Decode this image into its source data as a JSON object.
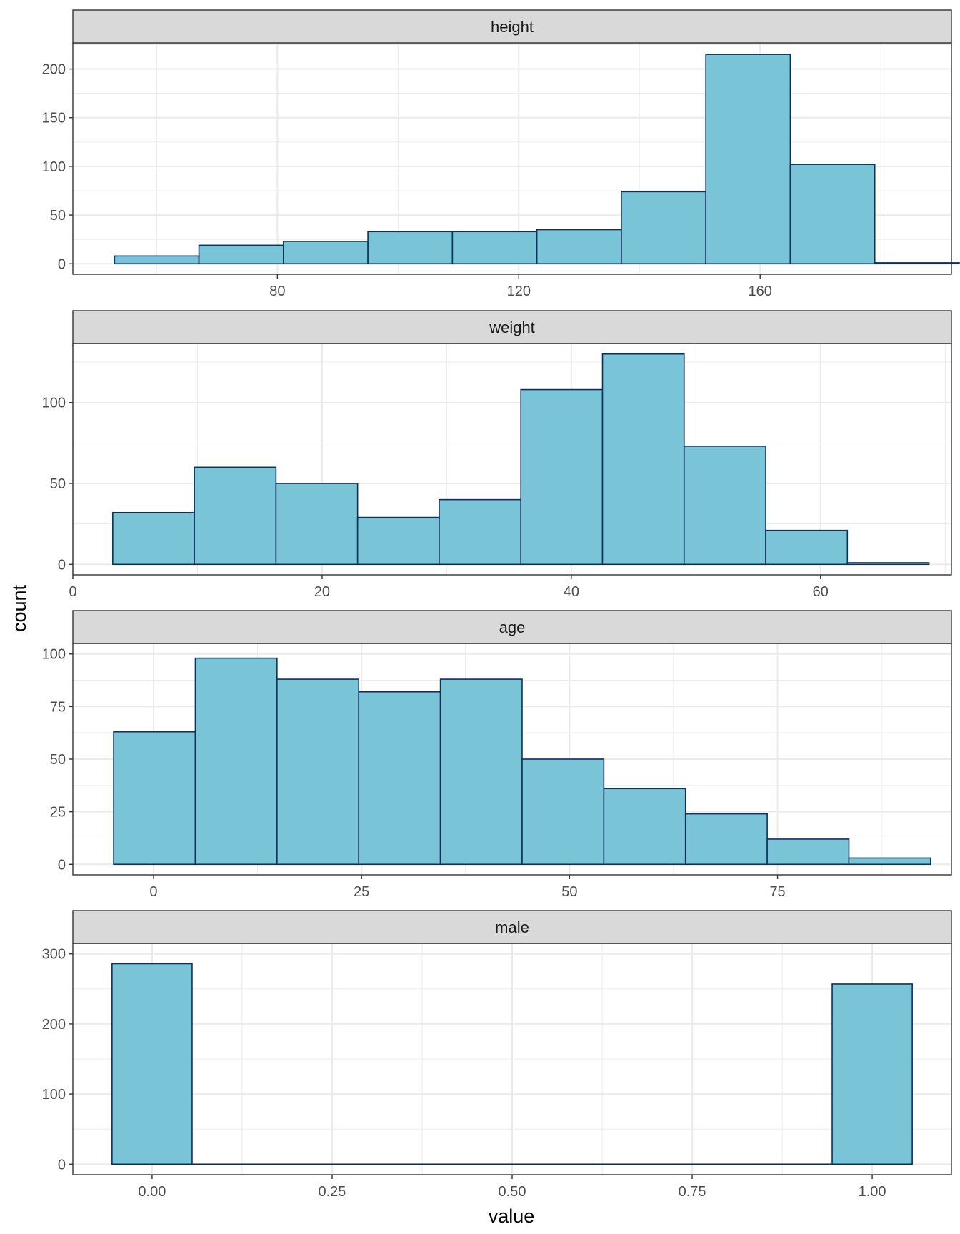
{
  "chart_data": {
    "type": "bar",
    "chart_kind": "faceted-histogram",
    "xlabel": "value",
    "ylabel": "count",
    "scales": "free",
    "grid": true,
    "colors": {
      "fill": "#79c4d6",
      "outline": "#0f2f5c",
      "strip": "#d9d9d9",
      "grid": "#ebebeb"
    },
    "facets": [
      {
        "label": "height",
        "xlim": [
          46.1,
          191.7
        ],
        "ylim": [
          -10.8,
          226.8
        ],
        "xticks": [
          80,
          120,
          160
        ],
        "yticks": [
          0,
          50,
          100,
          150,
          200
        ],
        "bin_edges": [
          53,
          67,
          81,
          95,
          109,
          123,
          137,
          151,
          165,
          179,
          193
        ],
        "counts": [
          8,
          19,
          23,
          33,
          33,
          35,
          74,
          215,
          102,
          1
        ]
      },
      {
        "label": "weight",
        "xlim": [
          0,
          70.5
        ],
        "ylim": [
          -6.5,
          136.5
        ],
        "xticks": [
          0,
          20,
          40,
          60
        ],
        "yticks": [
          0,
          50,
          100
        ],
        "bin_edges": [
          3.2,
          9.75,
          16.3,
          22.85,
          29.4,
          35.95,
          42.5,
          49.05,
          55.6,
          62.15,
          68.7
        ],
        "counts": [
          32,
          60,
          50,
          29,
          40,
          108,
          130,
          73,
          21,
          1
        ]
      },
      {
        "label": "age",
        "xlim": [
          -9.7,
          95.9
        ],
        "ylim": [
          -5,
          105
        ],
        "xticks": [
          0,
          25,
          50,
          75
        ],
        "yticks": [
          0,
          25,
          50,
          75,
          100
        ],
        "tick_labels_y": [
          "0",
          "25",
          "50",
          "75",
          "100"
        ],
        "bin_edges": [
          -4.8,
          5.02,
          14.84,
          24.66,
          34.48,
          44.3,
          54.12,
          63.94,
          73.76,
          83.58,
          93.4
        ],
        "counts": [
          63,
          98,
          88,
          82,
          88,
          50,
          36,
          24,
          12,
          3
        ]
      },
      {
        "label": "male",
        "xlim": [
          -0.11,
          1.11
        ],
        "ylim": [
          -15,
          315
        ],
        "xticks": [
          0,
          0.25,
          0.5,
          0.75,
          1
        ],
        "tick_labels_x": [
          "0.00",
          "0.25",
          "0.50",
          "0.75",
          "1.00"
        ],
        "yticks": [
          0,
          100,
          200,
          300
        ],
        "bin_edges": [
          -0.0556,
          0.0556,
          0.1667,
          0.2778,
          0.3889,
          0.5,
          0.6111,
          0.7222,
          0.8333,
          0.9444,
          1.0556
        ],
        "counts": [
          286,
          0,
          0,
          0,
          0,
          0,
          0,
          0,
          0,
          257
        ]
      }
    ]
  }
}
